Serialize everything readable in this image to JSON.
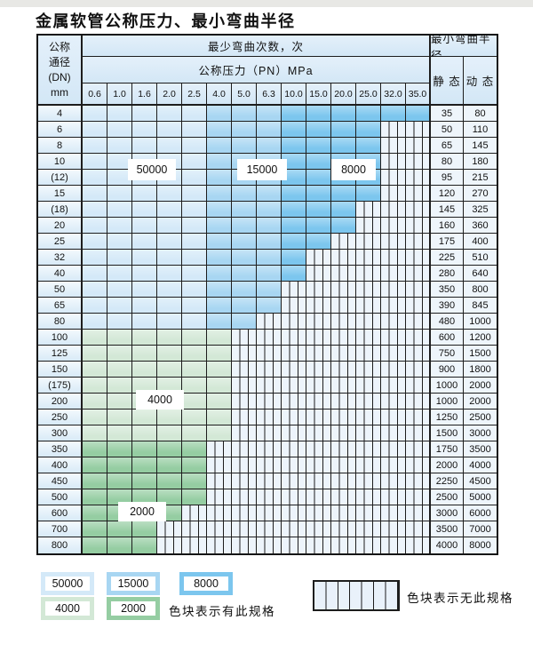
{
  "title": "金属软管公称压力、最小弯曲半径",
  "table": {
    "header": {
      "dn_lines": [
        "公称",
        "通径",
        "(DN)",
        "mm"
      ],
      "bend_cycles": "最少弯曲次数，次",
      "pressure": "公称压力（PN）MPa",
      "min_bend_radius": "最小弯曲半径",
      "static_label": "静 态",
      "dynamic_label": "动 态",
      "pressure_values": [
        "0.6",
        "1.0",
        "1.6",
        "2.0",
        "2.5",
        "4.0",
        "5.0",
        "6.3",
        "10.0",
        "15.0",
        "20.0",
        "25.0",
        "32.0",
        "35.0"
      ]
    },
    "zones": {
      "A": {
        "cycles": "50000",
        "color": "#d4e9f8"
      },
      "B": {
        "cycles": "15000",
        "color": "#a8d6f2"
      },
      "C": {
        "cycles": "8000",
        "color": "#7cc6ee"
      },
      "D": {
        "cycles": "4000",
        "color": "#d3e8d6"
      },
      "E": {
        "cycles": "2000",
        "color": "#95cda2"
      },
      "-": {
        "cycles": "",
        "color": "#edf4fb"
      }
    },
    "rows": [
      {
        "dn": "4",
        "spec": "AAAAABBBCCCCCC",
        "static": "35",
        "dynamic": "80"
      },
      {
        "dn": "6",
        "spec": "AAAAABBBCCCC--",
        "static": "50",
        "dynamic": "110"
      },
      {
        "dn": "8",
        "spec": "AAAAABBBCCCC--",
        "static": "65",
        "dynamic": "145"
      },
      {
        "dn": "10",
        "spec": "AAAAABBBCCCC--",
        "static": "80",
        "dynamic": "180"
      },
      {
        "dn": "(12)",
        "spec": "AAAAABBBCCCC--",
        "static": "95",
        "dynamic": "215"
      },
      {
        "dn": "15",
        "spec": "AAAAABBBCCCC--",
        "static": "120",
        "dynamic": "270"
      },
      {
        "dn": "(18)",
        "spec": "AAAAABBBCCC---",
        "static": "145",
        "dynamic": "325"
      },
      {
        "dn": "20",
        "spec": "AAAAABBBCCC---",
        "static": "160",
        "dynamic": "360"
      },
      {
        "dn": "25",
        "spec": "AAAAABBBCC----",
        "static": "175",
        "dynamic": "400"
      },
      {
        "dn": "32",
        "spec": "AAAAABBBC-----",
        "static": "225",
        "dynamic": "510"
      },
      {
        "dn": "40",
        "spec": "AAAAABBBC-----",
        "static": "280",
        "dynamic": "640"
      },
      {
        "dn": "50",
        "spec": "AAAAABBB------",
        "static": "350",
        "dynamic": "800"
      },
      {
        "dn": "65",
        "spec": "AAAAABBB------",
        "static": "390",
        "dynamic": "845"
      },
      {
        "dn": "80",
        "spec": "AAAAABB-------",
        "static": "480",
        "dynamic": "1000"
      },
      {
        "dn": "100",
        "spec": "DDDDDD--------",
        "static": "600",
        "dynamic": "1200"
      },
      {
        "dn": "125",
        "spec": "DDDDDD--------",
        "static": "750",
        "dynamic": "1500"
      },
      {
        "dn": "150",
        "spec": "DDDDDD--------",
        "static": "900",
        "dynamic": "1800"
      },
      {
        "dn": "(175)",
        "spec": "DDDDDD--------",
        "static": "1000",
        "dynamic": "2000"
      },
      {
        "dn": "200",
        "spec": "DDDDDD--------",
        "static": "1000",
        "dynamic": "2000"
      },
      {
        "dn": "250",
        "spec": "DDDDDD--------",
        "static": "1250",
        "dynamic": "2500"
      },
      {
        "dn": "300",
        "spec": "DDDDDD--------",
        "static": "1500",
        "dynamic": "3000"
      },
      {
        "dn": "350",
        "spec": "EEEEE---------",
        "static": "1750",
        "dynamic": "3500"
      },
      {
        "dn": "400",
        "spec": "EEEEE---------",
        "static": "2000",
        "dynamic": "4000"
      },
      {
        "dn": "450",
        "spec": "EEEEE---------",
        "static": "2250",
        "dynamic": "4500"
      },
      {
        "dn": "500",
        "spec": "EEEEE---------",
        "static": "2500",
        "dynamic": "5000"
      },
      {
        "dn": "600",
        "spec": "EEEE----------",
        "static": "3000",
        "dynamic": "6000"
      },
      {
        "dn": "700",
        "spec": "EEE-----------",
        "static": "3500",
        "dynamic": "7000"
      },
      {
        "dn": "800",
        "spec": "EEE-----------",
        "static": "4000",
        "dynamic": "8000"
      }
    ]
  },
  "legend": {
    "has_spec_label": "色块表示有此规格",
    "no_spec_label": "色块表示无此规格",
    "swatches": [
      {
        "value": "50000",
        "zone": "A"
      },
      {
        "value": "15000",
        "zone": "B"
      },
      {
        "value": "8000",
        "zone": "C"
      },
      {
        "value": "4000",
        "zone": "D"
      },
      {
        "value": "2000",
        "zone": "E"
      }
    ]
  },
  "colors": {
    "page_bg": "#ffffff",
    "top_strip": "#e8e8e5",
    "header_bg": "#d8e9f7",
    "grid_line": "#1d1d1d"
  }
}
